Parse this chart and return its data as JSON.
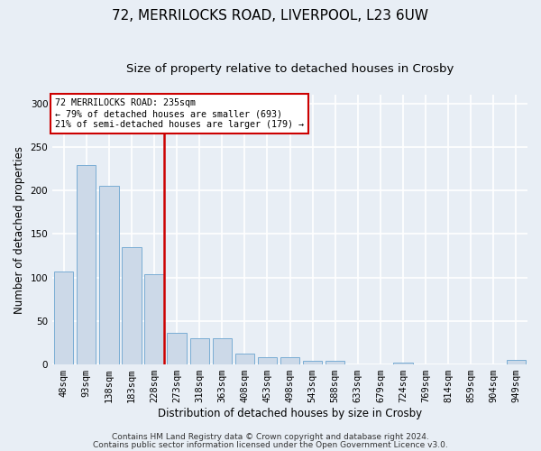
{
  "title1": "72, MERRILOCKS ROAD, LIVERPOOL, L23 6UW",
  "title2": "Size of property relative to detached houses in Crosby",
  "xlabel": "Distribution of detached houses by size in Crosby",
  "ylabel": "Number of detached properties",
  "categories": [
    "48sqm",
    "93sqm",
    "138sqm",
    "183sqm",
    "228sqm",
    "273sqm",
    "318sqm",
    "363sqm",
    "408sqm",
    "453sqm",
    "498sqm",
    "543sqm",
    "588sqm",
    "633sqm",
    "679sqm",
    "724sqm",
    "769sqm",
    "814sqm",
    "859sqm",
    "904sqm",
    "949sqm"
  ],
  "values": [
    107,
    229,
    205,
    135,
    104,
    36,
    30,
    30,
    13,
    8,
    8,
    4,
    4,
    0,
    0,
    2,
    0,
    0,
    0,
    0,
    5
  ],
  "bar_color": "#ccd9e8",
  "bar_edge_color": "#7aadd4",
  "highlight_bar_index": 4,
  "highlight_color": "#cc0000",
  "annotation_text": "72 MERRILOCKS ROAD: 235sqm\n← 79% of detached houses are smaller (693)\n21% of semi-detached houses are larger (179) →",
  "annotation_box_color": "#ffffff",
  "annotation_box_edge": "#cc0000",
  "ylim": [
    0,
    310
  ],
  "footer1": "Contains HM Land Registry data © Crown copyright and database right 2024.",
  "footer2": "Contains public sector information licensed under the Open Government Licence v3.0.",
  "bg_color": "#e8eef5",
  "grid_color": "#ffffff",
  "title_fontsize": 11,
  "subtitle_fontsize": 9.5,
  "label_fontsize": 8.5,
  "tick_fontsize": 7.5,
  "footer_fontsize": 6.5
}
